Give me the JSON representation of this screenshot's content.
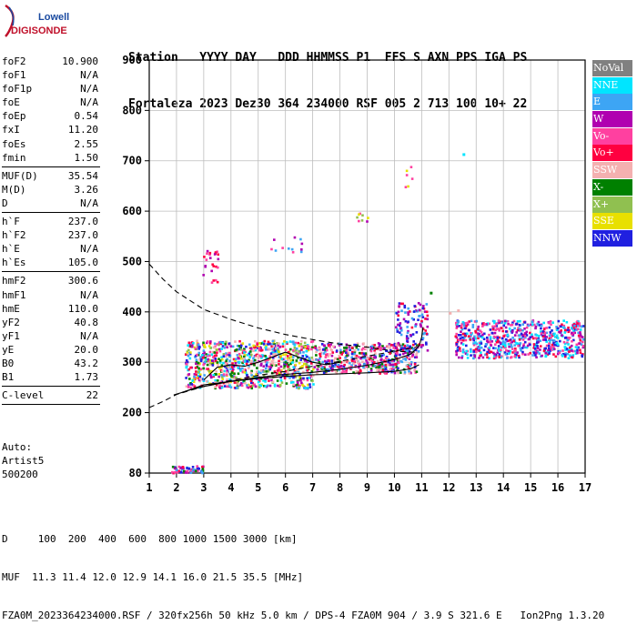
{
  "logo": {
    "line1": "Lowell",
    "line2": "DIGISONDE"
  },
  "header": {
    "columns": [
      "Station",
      "YYYY DAY",
      "DDD",
      "HHMMSS",
      "P1",
      "FFS",
      "S",
      "AXN",
      "PPS",
      "IGA",
      "PS"
    ],
    "values": [
      "Fortaleza",
      "2023 Dez30",
      "364",
      "234000",
      "RSF",
      "005",
      "2",
      "713",
      "100",
      "10+",
      "22"
    ]
  },
  "params": {
    "group1": [
      {
        "label": "foF2",
        "value": "10.900"
      },
      {
        "label": "foF1",
        "value": "N/A"
      },
      {
        "label": "foF1p",
        "value": "N/A"
      },
      {
        "label": "foE",
        "value": "N/A"
      },
      {
        "label": "foEp",
        "value": "0.54"
      },
      {
        "label": "fxI",
        "value": "11.20"
      },
      {
        "label": "foEs",
        "value": "2.55"
      },
      {
        "label": "fmin",
        "value": "1.50"
      }
    ],
    "group2": [
      {
        "label": "MUF(D)",
        "value": "35.54"
      },
      {
        "label": "M(D)",
        "value": "3.26"
      },
      {
        "label": "D",
        "value": "N/A"
      }
    ],
    "group3": [
      {
        "label": "h`F",
        "value": "237.0"
      },
      {
        "label": "h`F2",
        "value": "237.0"
      },
      {
        "label": "h`E",
        "value": "N/A"
      },
      {
        "label": "h`Es",
        "value": "105.0"
      }
    ],
    "group4": [
      {
        "label": "hmF2",
        "value": "300.6"
      },
      {
        "label": "hmF1",
        "value": "N/A"
      },
      {
        "label": "hmE",
        "value": "110.0"
      },
      {
        "label": "yF2",
        "value": "40.8"
      },
      {
        "label": "yF1",
        "value": "N/A"
      },
      {
        "label": "yE",
        "value": "20.0"
      },
      {
        "label": "B0",
        "value": "43.2"
      },
      {
        "label": "B1",
        "value": "1.73"
      }
    ],
    "group5": [
      {
        "label": "C-level",
        "value": "22"
      }
    ]
  },
  "auto": {
    "line1": "Auto:",
    "line2": "Artist5",
    "line3": "500200"
  },
  "legend": [
    {
      "label": "NoVal",
      "color": "#808080",
      "text_color": "#ffffff"
    },
    {
      "label": "NNE",
      "color": "#00e5ff",
      "text_color": "#ffffff"
    },
    {
      "label": "E",
      "color": "#3da5f4",
      "text_color": "#ffffff"
    },
    {
      "label": "W",
      "color": "#b000b0",
      "text_color": "#ffffff"
    },
    {
      "label": "Vo-",
      "color": "#ff40a0",
      "text_color": "#ffffff"
    },
    {
      "label": "Vo+",
      "color": "#ff0040",
      "text_color": "#ffffff"
    },
    {
      "label": "SSW",
      "color": "#f4b0b0",
      "text_color": "#ffffff"
    },
    {
      "label": "X-",
      "color": "#008000",
      "text_color": "#ffffff"
    },
    {
      "label": "X+",
      "color": "#90c050",
      "text_color": "#ffffff"
    },
    {
      "label": "SSE",
      "color": "#e8e000",
      "text_color": "#ffffff"
    },
    {
      "label": "NNW",
      "color": "#2020e0",
      "text_color": "#ffffff"
    }
  ],
  "footer": {
    "d_row": "D     100  200  400  600  800 1000 1500 3000 [km]",
    "muf_row": "MUF  11.3 11.4 12.0 12.9 14.1 16.0 21.5 35.5 [MHz]",
    "file_row": "FZA0M_2023364234000.RSF / 320fx256h 50 kHz 5.0 km / DPS-4 FZA0M 904 / 3.9 S 321.6 E   Ion2Png 1.3.20"
  },
  "chart_data": {
    "type": "scatter",
    "title": "",
    "xlabel": "",
    "ylabel": "",
    "xlim": [
      1,
      17
    ],
    "ylim": [
      80,
      900
    ],
    "x_ticks": [
      "1",
      "2",
      "3",
      "4",
      "5",
      "6",
      "7",
      "8",
      "9",
      "10",
      "11",
      "12",
      "13",
      "14",
      "15",
      "16",
      "17"
    ],
    "y_ticks": [
      "80",
      "200",
      "300",
      "400",
      "500",
      "600",
      "700",
      "800",
      "900"
    ],
    "grid": true,
    "legend_position": "right",
    "clusters": [
      {
        "name": "Es",
        "x": [
          1.8,
          3.0
        ],
        "y": [
          82,
          96
        ],
        "density": 60,
        "colors": [
          "W",
          "Vo-",
          "Vo+",
          "X-",
          "E",
          "NNW"
        ]
      },
      {
        "name": "F-main",
        "x": [
          2.3,
          7.0
        ],
        "y": [
          250,
          345
        ],
        "density": 900,
        "colors": [
          "E",
          "W",
          "Vo-",
          "Vo+",
          "X-",
          "X+",
          "SSE",
          "NNW",
          "SSW",
          "NNE"
        ]
      },
      {
        "name": "F-upper",
        "x": [
          7.0,
          10.8
        ],
        "y": [
          280,
          340
        ],
        "density": 500,
        "colors": [
          "E",
          "W",
          "Vo-",
          "Vo+",
          "X-",
          "NNW",
          "SSW"
        ]
      },
      {
        "name": "F-high",
        "x": [
          10.0,
          11.2
        ],
        "y": [
          320,
          420
        ],
        "density": 120,
        "colors": [
          "NNW",
          "W",
          "E",
          "Vo+"
        ]
      },
      {
        "name": "spread",
        "x": [
          12.2,
          16.9
        ],
        "y": [
          310,
          385
        ],
        "density": 700,
        "colors": [
          "W",
          "NNW",
          "Vo-",
          "E",
          "Vo+",
          "NNE"
        ]
      },
      {
        "name": "M2",
        "x": [
          2.9,
          3.5
        ],
        "y": [
          460,
          530
        ],
        "density": 25,
        "colors": [
          "W",
          "Vo-",
          "Vo+"
        ]
      },
      {
        "name": "M2b",
        "x": [
          5.4,
          6.6
        ],
        "y": [
          520,
          550
        ],
        "density": 12,
        "colors": [
          "E",
          "W",
          "Vo-"
        ]
      },
      {
        "name": "M3",
        "x": [
          8.5,
          9.0
        ],
        "y": [
          580,
          600
        ],
        "density": 8,
        "colors": [
          "W",
          "Vo-",
          "X+",
          "SSE"
        ]
      },
      {
        "name": "M4",
        "x": [
          10.3,
          10.7
        ],
        "y": [
          650,
          690
        ],
        "density": 6,
        "colors": [
          "Vo-",
          "Vo+",
          "SSE"
        ]
      }
    ],
    "traces": [
      {
        "name": "F2-fit",
        "style": "solid",
        "points": [
          [
            1.9,
            235
          ],
          [
            2.5,
            245
          ],
          [
            3.0,
            252
          ],
          [
            4.0,
            262
          ],
          [
            5.0,
            270
          ],
          [
            6.0,
            276
          ],
          [
            7.0,
            280
          ],
          [
            8.0,
            286
          ],
          [
            9.0,
            294
          ],
          [
            10.0,
            305
          ],
          [
            10.6,
            316
          ],
          [
            10.9,
            332
          ],
          [
            11.0,
            350
          ],
          [
            11.05,
            370
          ]
        ]
      },
      {
        "name": "F2-lower",
        "style": "solid",
        "points": [
          [
            2.2,
            240
          ],
          [
            3.0,
            255
          ],
          [
            4.0,
            262
          ],
          [
            5.0,
            268
          ],
          [
            6.0,
            272
          ],
          [
            7.0,
            275
          ],
          [
            8.0,
            277
          ],
          [
            9.0,
            279
          ],
          [
            10.0,
            282
          ],
          [
            10.6,
            287
          ],
          [
            10.9,
            295
          ]
        ]
      },
      {
        "name": "profile-dashed-upper",
        "style": "dashed",
        "points": [
          [
            1.0,
            495
          ],
          [
            1.5,
            465
          ],
          [
            2.0,
            440
          ],
          [
            3.0,
            405
          ],
          [
            4.0,
            385
          ],
          [
            5.0,
            368
          ],
          [
            6.0,
            355
          ],
          [
            7.0,
            345
          ],
          [
            8.0,
            336
          ],
          [
            9.0,
            330
          ],
          [
            10.0,
            322
          ],
          [
            10.8,
            320
          ]
        ]
      },
      {
        "name": "profile-dashed-lower",
        "style": "dashed",
        "points": [
          [
            1.0,
            210
          ],
          [
            1.5,
            222
          ],
          [
            2.0,
            236
          ],
          [
            3.0,
            252
          ],
          [
            4.0,
            264
          ],
          [
            5.0,
            274
          ],
          [
            6.0,
            282
          ],
          [
            7.0,
            292
          ],
          [
            8.0,
            302
          ],
          [
            9.0,
            312
          ],
          [
            10.0,
            322
          ],
          [
            10.8,
            330
          ]
        ]
      },
      {
        "name": "inner-trace",
        "style": "solid",
        "points": [
          [
            3.0,
            265
          ],
          [
            3.5,
            290
          ],
          [
            4.0,
            295
          ],
          [
            4.5,
            292
          ],
          [
            5.0,
            300
          ],
          [
            5.5,
            310
          ],
          [
            6.0,
            320
          ],
          [
            6.5,
            310
          ],
          [
            7.0,
            300
          ],
          [
            7.5,
            295
          ],
          [
            8.0,
            300
          ]
        ]
      }
    ],
    "annotations": [
      {
        "x": 12.5,
        "y": 715,
        "color": "NNE"
      },
      {
        "x": 11.3,
        "y": 440,
        "color": "X-"
      },
      {
        "x": 12.0,
        "y": 400,
        "color": "SSW"
      },
      {
        "x": 12.3,
        "y": 405,
        "color": "SSW"
      }
    ]
  }
}
